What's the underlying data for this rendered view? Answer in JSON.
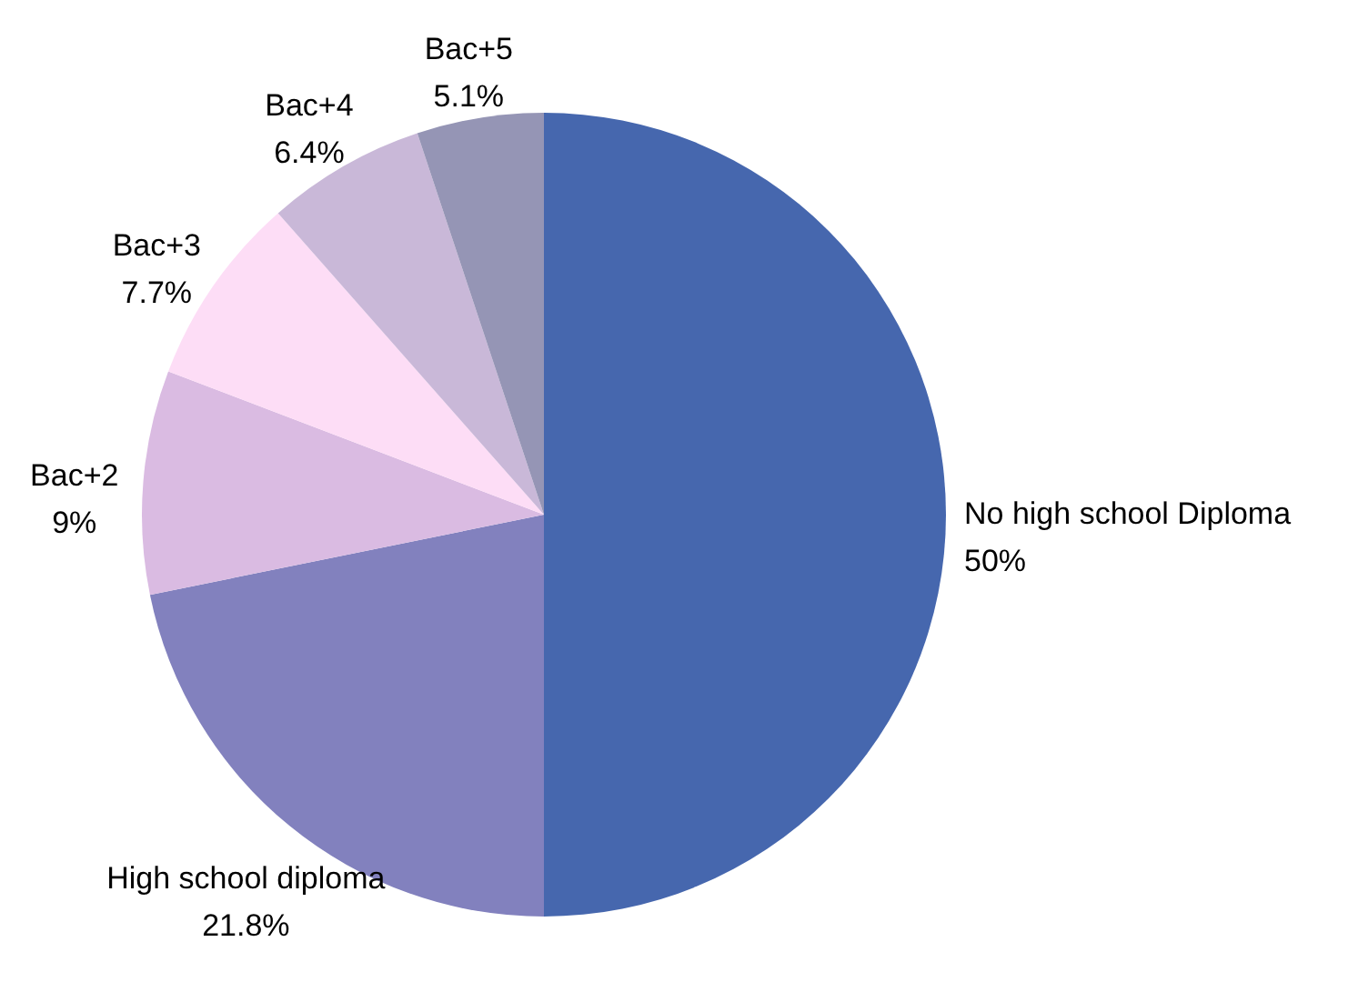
{
  "chart_data": {
    "type": "pie",
    "categories": [
      "No high school Diploma",
      "High school diploma",
      "Bac+2",
      "Bac+3",
      "Bac+4",
      "Bac+5"
    ],
    "values": [
      50,
      21.8,
      9,
      7.7,
      6.4,
      5.1
    ],
    "value_labels": [
      "50%",
      "21.8%",
      "9%",
      "7.7%",
      "6.4%",
      "5.1%"
    ],
    "colors": [
      "#4667ae",
      "#8281be",
      "#dabbe2",
      "#fdddf6",
      "#c9b8d8",
      "#9595b5"
    ]
  }
}
